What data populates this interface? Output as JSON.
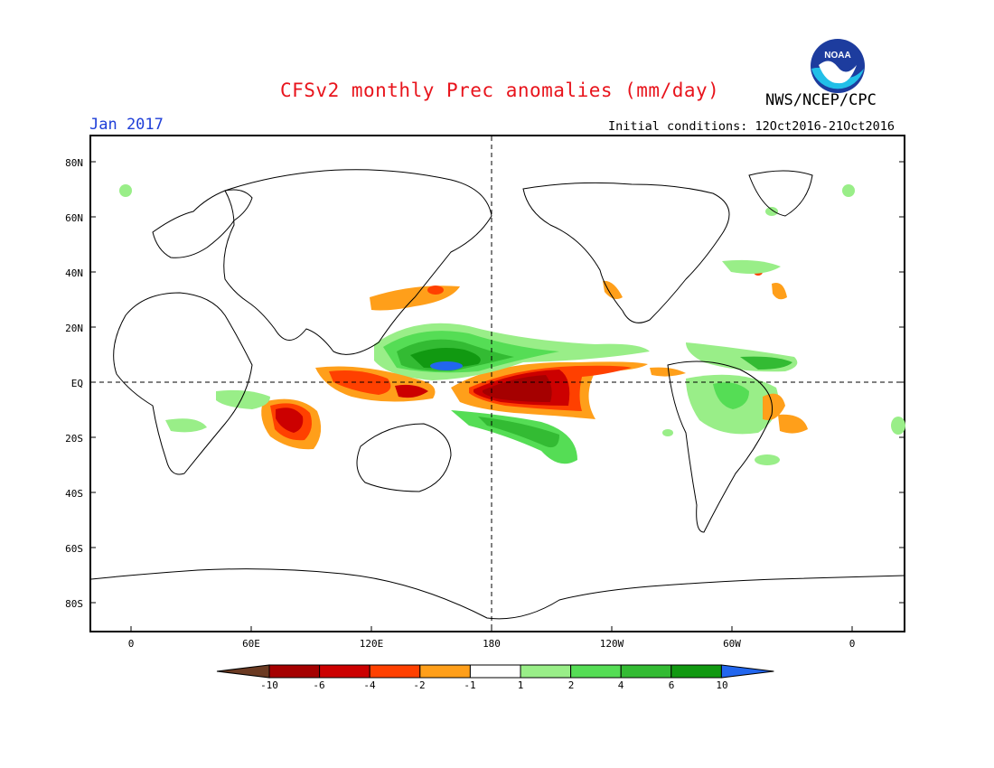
{
  "header": {
    "title": "CFSv2 monthly Prec anomalies (mm/day)",
    "organization": "NWS/NCEP/CPC",
    "target_month": "Jan 2017",
    "initial_conditions": "Initial conditions: 12Oct2016-21Oct2016",
    "logo_text": "NOAA"
  },
  "map": {
    "latitude_labels": [
      "80N",
      "60N",
      "40N",
      "20N",
      "EQ",
      "20S",
      "40S",
      "60S",
      "80S"
    ],
    "longitude_labels": [
      "0",
      "60E",
      "120E",
      "180",
      "120W",
      "60W",
      "0"
    ]
  },
  "colorbar": {
    "labels": [
      "-10",
      "-6",
      "-4",
      "-2",
      "-1",
      "1",
      "2",
      "4",
      "6",
      "10"
    ],
    "colors": [
      "#6b3a22",
      "#a50000",
      "#cc0000",
      "#ff4000",
      "#ff9f1a",
      "#ffffff",
      "#99ee88",
      "#55dd55",
      "#33bb33",
      "#119911",
      "#2266ee"
    ]
  }
}
